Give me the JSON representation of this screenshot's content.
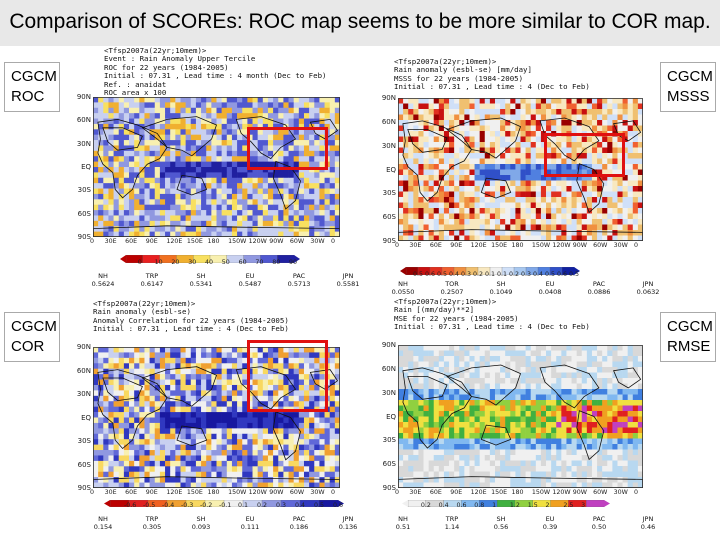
{
  "title": "Comparison of SCOREs: ROC map seems to be  more similar to COR map.",
  "colors": {
    "box": "#e01010",
    "title_bg": "#e8e8e8"
  },
  "chart_data": [
    {
      "type": "heatmap",
      "side_label": [
        "CGCM",
        "ROC"
      ],
      "header": [
        "<Tfsp2007a(22yr;10mem)>",
        "Event : Rain Anomaly Upper Tercile",
        "ROC for 22 years (1984-2005)",
        "Initial : 07.31 , Lead time : 4 month (Dec to Feb)",
        "Ref. : anaidat",
        "ROC area x 100"
      ],
      "lat_ticks": [
        "90N",
        "60N",
        "30N",
        "EQ",
        "30S",
        "60S",
        "90S"
      ],
      "lon_ticks": [
        "0",
        "30E",
        "60E",
        "90E",
        "120E",
        "150E",
        "180",
        "150W",
        "120W",
        "90W",
        "60W",
        "30W",
        "0"
      ],
      "colorbar": {
        "labels": [
          "0",
          "10",
          "20",
          "30",
          "40",
          "50",
          "60",
          "70",
          "80",
          "90"
        ],
        "colors": [
          "#bb0000",
          "#e82020",
          "#f07020",
          "#f0b030",
          "#f8e060",
          "#f8f0b0",
          "#c8d0f0",
          "#9098e0",
          "#5058d0",
          "#2020a0"
        ]
      },
      "stats": [
        {
          "name": "NH",
          "value": "0.5624"
        },
        {
          "name": "TRP",
          "value": "0.6147"
        },
        {
          "name": "SH",
          "value": "0.5341"
        },
        {
          "name": "EU",
          "value": "0.5487"
        },
        {
          "name": "PAC",
          "value": "0.5713"
        },
        {
          "name": "JPN",
          "value": "0.5581"
        }
      ]
    },
    {
      "type": "heatmap",
      "side_label": [
        "CGCM",
        "MSSS"
      ],
      "header": [
        "<Tfsp2007a(22yr;10mem)>",
        "Rain anomaly (esbl-se) [mm/day]",
        "MSSS for 22 years (1984-2005)",
        "Initial : 07.31 , Lead time : 4 (Dec to Feb)"
      ],
      "lat_ticks": [
        "90N",
        "60N",
        "30N",
        "EQ",
        "30S",
        "60S",
        "90S"
      ],
      "lon_ticks": [
        "0",
        "30E",
        "60E",
        "90E",
        "120E",
        "150E",
        "180",
        "150W",
        "120W",
        "90W",
        "60W",
        "30W",
        "0"
      ],
      "colorbar": {
        "labels": [
          "0.5",
          "0.6",
          "0.5",
          "0.4",
          "0.3",
          "0.2",
          "0.1",
          "0.1",
          "0.2",
          "0.3",
          "0.4",
          "0.5",
          "0.6",
          "0.5"
        ],
        "colors": [
          "#990000",
          "#c81010",
          "#e03020",
          "#f06030",
          "#f09040",
          "#f0c070",
          "#f8e8c0",
          "#f0f0f0",
          "#d0e0f8",
          "#a8c8f0",
          "#80a8e8",
          "#5080e0",
          "#3050c8",
          "#1020a0"
        ]
      },
      "stats": [
        {
          "name": "NH",
          "value": "0.0550"
        },
        {
          "name": "TOR",
          "value": "0.2507"
        },
        {
          "name": "SH",
          "value": "0.1049"
        },
        {
          "name": "EU",
          "value": "0.0408"
        },
        {
          "name": "PAC",
          "value": "0.0886"
        },
        {
          "name": "JPN",
          "value": "0.0632"
        }
      ]
    },
    {
      "type": "heatmap",
      "side_label": [
        "CGCM",
        "COR"
      ],
      "header": [
        "<Tfsp2007a(22yr;10mem)>",
        "Rain anomaly (esbl-se)",
        "Anomaly Correlation for 22 years (1984-2005)",
        "Initial : 07.31 , Lead time : 4 (Dec to Feb)"
      ],
      "lat_ticks": [
        "90N",
        "60N",
        "30N",
        "EQ",
        "30S",
        "60S",
        "90S"
      ],
      "lon_ticks": [
        "0",
        "30E",
        "60E",
        "90E",
        "120E",
        "150E",
        "180",
        "150W",
        "120W",
        "90W",
        "60W",
        "30W",
        "0"
      ],
      "colorbar": {
        "labels": [
          "-0.6",
          "-0.5",
          "-0.4",
          "-0.3",
          "-0.2",
          "-0.1",
          "0.1",
          "0.2",
          "0.3",
          "0.4",
          "0.5",
          "0.6"
        ],
        "colors": [
          "#bb0000",
          "#e02020",
          "#f06020",
          "#f0a030",
          "#f8d860",
          "#f8f0b0",
          "#f0f0f0",
          "#c8d0f0",
          "#9098e0",
          "#6068d8",
          "#3038c0",
          "#1818a0"
        ]
      },
      "stats": [
        {
          "name": "NH",
          "value": "0.154"
        },
        {
          "name": "TRP",
          "value": "0.305"
        },
        {
          "name": "SH",
          "value": "0.093"
        },
        {
          "name": "EU",
          "value": "0.111"
        },
        {
          "name": "PAC",
          "value": "0.186"
        },
        {
          "name": "JPN",
          "value": "0.136"
        }
      ]
    },
    {
      "type": "heatmap",
      "side_label": [
        "CGCM",
        "RMSE"
      ],
      "header": [
        "<Tfsp2007a(22yr;10mem)>",
        "Rain [(mm/day)**2]",
        "MSE for 22 years (1984-2005)",
        "Initial : 07.31 , Lead time : 4 (Dec to Feb)"
      ],
      "lat_ticks": [
        "90N",
        "60N",
        "30N",
        "EQ",
        "30S",
        "60S",
        "90S"
      ],
      "lon_ticks": [
        "0",
        "30E",
        "60E",
        "90E",
        "120E",
        "150E",
        "180",
        "150W",
        "120W",
        "90W",
        "60W",
        "30W",
        "0"
      ],
      "colorbar": {
        "labels": [
          "0.2",
          "0.4",
          "0.6",
          "0.8",
          "1",
          "1.2",
          "1.5",
          "2",
          "2.5",
          "3"
        ],
        "colors": [
          "#f0f0f0",
          "#d8d8d8",
          "#b8d8f0",
          "#80b8f0",
          "#4080e0",
          "#40b040",
          "#90d040",
          "#f0e040",
          "#f0a020",
          "#e02020",
          "#c040c0"
        ]
      },
      "stats": [
        {
          "name": "NH",
          "value": "0.51"
        },
        {
          "name": "TRP",
          "value": "1.14"
        },
        {
          "name": "SH",
          "value": "0.56"
        },
        {
          "name": "EU",
          "value": "0.39"
        },
        {
          "name": "PAC",
          "value": "0.50"
        },
        {
          "name": "JPN",
          "value": "0.46"
        }
      ]
    }
  ]
}
